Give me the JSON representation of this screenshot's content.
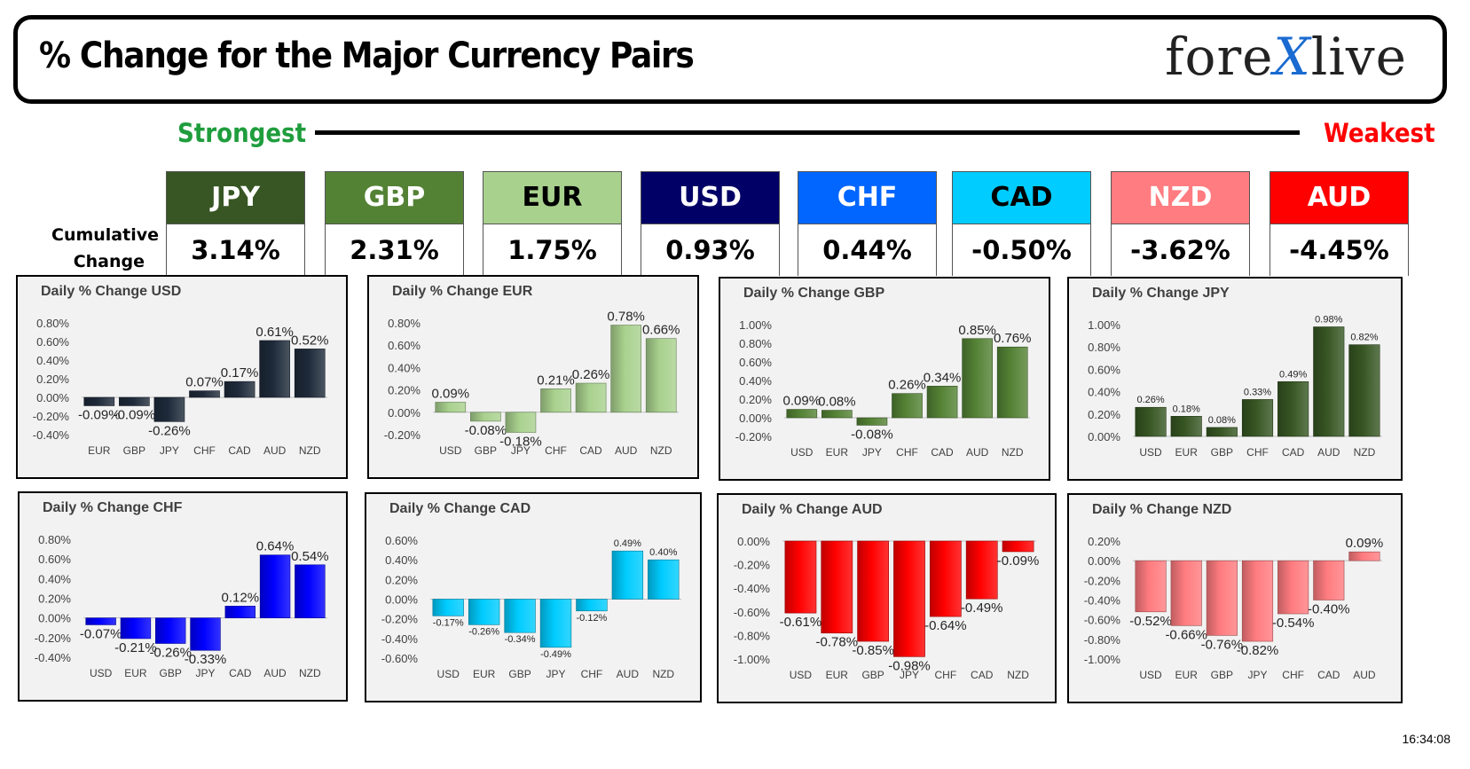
{
  "header": {
    "title": "% Change for the Major Currency Pairs",
    "logo_left": "fore",
    "logo_x": "X",
    "logo_right": "live"
  },
  "strength": {
    "strongest_label": "Strongest",
    "weakest_label": "Weakest"
  },
  "cumulative": {
    "label_line1": "Cumulative",
    "label_line2": "Change",
    "currencies": [
      {
        "code": "JPY",
        "value": "3.14%",
        "bg": "#375623",
        "fg": "#ffffff"
      },
      {
        "code": "GBP",
        "value": "2.31%",
        "bg": "#548235",
        "fg": "#ffffff"
      },
      {
        "code": "EUR",
        "value": "1.75%",
        "bg": "#a9d18e",
        "fg": "#000000"
      },
      {
        "code": "USD",
        "value": "0.93%",
        "bg": "#000066",
        "fg": "#ffffff"
      },
      {
        "code": "CHF",
        "value": "0.44%",
        "bg": "#0066ff",
        "fg": "#ffffff"
      },
      {
        "code": "CAD",
        "value": "-0.50%",
        "bg": "#00ccff",
        "fg": "#000000"
      },
      {
        "code": "NZD",
        "value": "-3.62%",
        "bg": "#ff7c80",
        "fg": "#ffffff"
      },
      {
        "code": "AUD",
        "value": "-4.45%",
        "bg": "#ff0000",
        "fg": "#ffffff"
      }
    ]
  },
  "timestamp": "16:34:08",
  "chart_data": [
    {
      "type": "bar",
      "title": "Daily % Change USD",
      "categories": [
        "EUR",
        "GBP",
        "JPY",
        "CHF",
        "CAD",
        "AUD",
        "NZD"
      ],
      "values": [
        -0.09,
        -0.09,
        -0.26,
        0.07,
        0.17,
        0.61,
        0.52
      ],
      "ylim": [
        -0.4,
        0.8
      ],
      "ytick_step": 0.2,
      "color": "#1e2a3a",
      "label_size": 15
    },
    {
      "type": "bar",
      "title": "Daily % Change EUR",
      "categories": [
        "USD",
        "GBP",
        "JPY",
        "CHF",
        "CAD",
        "AUD",
        "NZD"
      ],
      "values": [
        0.09,
        -0.08,
        -0.18,
        0.21,
        0.26,
        0.78,
        0.66
      ],
      "ylim": [
        -0.2,
        0.8
      ],
      "ytick_step": 0.2,
      "color": "#a9d18e",
      "label_size": 15
    },
    {
      "type": "bar",
      "title": "Daily % Change GBP",
      "categories": [
        "USD",
        "EUR",
        "JPY",
        "CHF",
        "CAD",
        "AUD",
        "NZD"
      ],
      "values": [
        0.09,
        0.08,
        -0.08,
        0.26,
        0.34,
        0.85,
        0.76
      ],
      "ylim": [
        -0.2,
        1.0
      ],
      "ytick_step": 0.2,
      "color": "#548235",
      "label_size": 15
    },
    {
      "type": "bar",
      "title": "Daily % Change JPY",
      "categories": [
        "USD",
        "EUR",
        "GBP",
        "CHF",
        "CAD",
        "AUD",
        "NZD"
      ],
      "values": [
        0.26,
        0.18,
        0.08,
        0.33,
        0.49,
        0.98,
        0.82
      ],
      "ylim": [
        0.0,
        1.0
      ],
      "ytick_step": 0.2,
      "color": "#375623",
      "label_size": 11
    },
    {
      "type": "bar",
      "title": "Daily % Change CHF",
      "categories": [
        "USD",
        "EUR",
        "GBP",
        "JPY",
        "CAD",
        "AUD",
        "NZD"
      ],
      "values": [
        -0.07,
        -0.21,
        -0.26,
        -0.33,
        0.12,
        0.64,
        0.54
      ],
      "ylim": [
        -0.4,
        0.8
      ],
      "ytick_step": 0.2,
      "color": "#0000ff",
      "label_size": 15
    },
    {
      "type": "bar",
      "title": "Daily % Change CAD",
      "categories": [
        "USD",
        "EUR",
        "GBP",
        "JPY",
        "CHF",
        "AUD",
        "NZD"
      ],
      "values": [
        -0.17,
        -0.26,
        -0.34,
        -0.49,
        -0.12,
        0.49,
        0.4
      ],
      "ylim": [
        -0.6,
        0.6
      ],
      "ytick_step": 0.2,
      "color": "#00ccff",
      "label_size": 11
    },
    {
      "type": "bar",
      "title": "Daily % Change AUD",
      "categories": [
        "USD",
        "EUR",
        "GBP",
        "JPY",
        "CHF",
        "CAD",
        "NZD"
      ],
      "values": [
        -0.61,
        -0.78,
        -0.85,
        -0.98,
        -0.64,
        -0.49,
        -0.09
      ],
      "ylim": [
        -1.0,
        0.0
      ],
      "ytick_step": 0.2,
      "color": "#ff0000",
      "label_size": 15
    },
    {
      "type": "bar",
      "title": "Daily % Change NZD",
      "categories": [
        "USD",
        "EUR",
        "GBP",
        "JPY",
        "CHF",
        "CAD",
        "AUD"
      ],
      "values": [
        -0.52,
        -0.66,
        -0.76,
        -0.82,
        -0.54,
        -0.4,
        0.09
      ],
      "ylim": [
        -1.0,
        0.2
      ],
      "ytick_step": 0.2,
      "color": "#ff7c80",
      "label_size": 15
    }
  ]
}
